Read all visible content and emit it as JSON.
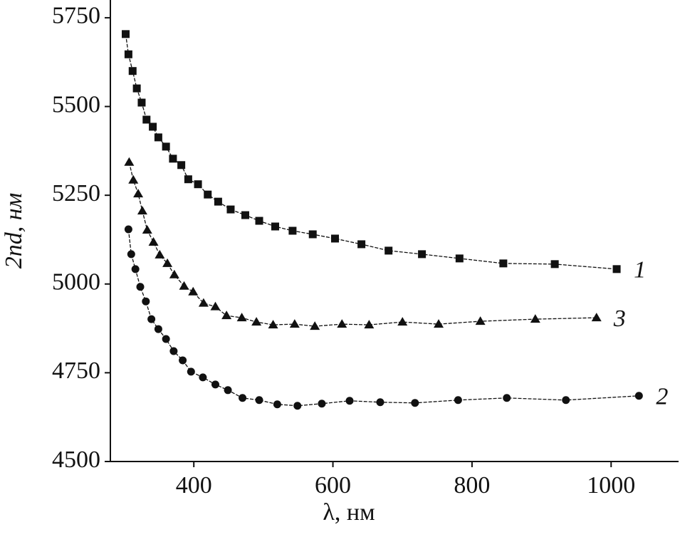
{
  "chart_data": {
    "type": "line",
    "xlabel": "λ, нм",
    "ylabel": "2nd, нм",
    "xlim": [
      280,
      1097
    ],
    "ylim": [
      4500,
      5800
    ],
    "xticks": [
      400,
      600,
      800,
      1000
    ],
    "yticks": [
      4500,
      4750,
      5000,
      5250,
      5500,
      5750
    ],
    "series": [
      {
        "name": "1",
        "color": "#111111",
        "marker": "square",
        "x": [
          302,
          306,
          312,
          318,
          325,
          332,
          341,
          349,
          360,
          370,
          382,
          392,
          406,
          420,
          435,
          453,
          474,
          494,
          517,
          542,
          571,
          603,
          641,
          680,
          728,
          782,
          845,
          919,
          1008
        ],
        "values": [
          5704,
          5647,
          5600,
          5551,
          5511,
          5463,
          5443,
          5413,
          5387,
          5353,
          5335,
          5295,
          5281,
          5252,
          5232,
          5210,
          5194,
          5178,
          5162,
          5150,
          5140,
          5128,
          5112,
          5094,
          5084,
          5072,
          5058,
          5056,
          5042
        ]
      },
      {
        "name": "3",
        "color": "#111111",
        "marker": "triangle",
        "x": [
          307,
          313,
          320,
          326,
          333,
          342,
          351,
          362,
          372,
          386,
          399,
          414,
          431,
          447,
          469,
          490,
          514,
          545,
          574,
          613,
          652,
          700,
          752,
          812,
          891,
          979
        ],
        "values": [
          5343,
          5293,
          5254,
          5206,
          5152,
          5118,
          5082,
          5058,
          5026,
          4994,
          4978,
          4946,
          4936,
          4911,
          4905,
          4893,
          4885,
          4887,
          4881,
          4887,
          4885,
          4893,
          4887,
          4895,
          4901,
          4905
        ]
      },
      {
        "name": "2",
        "color": "#111111",
        "marker": "circle",
        "x": [
          306,
          310,
          316,
          323,
          331,
          339,
          349,
          360,
          371,
          384,
          396,
          413,
          431,
          449,
          470,
          494,
          520,
          549,
          584,
          624,
          668,
          718,
          780,
          850,
          935,
          1040
        ],
        "values": [
          5154,
          5084,
          5042,
          4992,
          4951,
          4901,
          4873,
          4845,
          4811,
          4785,
          4753,
          4737,
          4717,
          4701,
          4679,
          4673,
          4661,
          4657,
          4663,
          4671,
          4667,
          4665,
          4673,
          4679,
          4673,
          4685
        ]
      }
    ]
  }
}
